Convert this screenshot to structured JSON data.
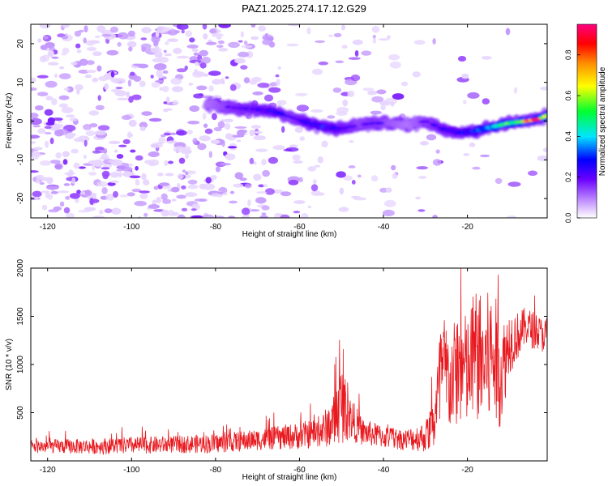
{
  "title": "PAZ1.2025.274.17.12.G29",
  "colors": {
    "spectrum_light": "#e6d4ff",
    "spectrum_mid": "#8a3cff",
    "snr_line": "#e8191f",
    "axis": "#000000"
  },
  "chart_data": [
    {
      "type": "heatmap",
      "name": "spectrogram",
      "title": "PAZ1.2025.274.17.12.G29",
      "xlabel": "Height of straight line (km)",
      "ylabel": "Frequency (Hz)",
      "xlim": [
        -124,
        -1
      ],
      "ylim": [
        -25,
        25
      ],
      "x_ticks": [
        -120,
        -100,
        -80,
        -60,
        -40,
        -20
      ],
      "x_tick_labels": [
        "-120",
        "-100",
        "-80",
        "-60",
        "-40",
        "-20"
      ],
      "y_ticks": [
        -20,
        -10,
        0,
        10,
        20
      ],
      "y_tick_labels": [
        "-20",
        "-10",
        "0",
        "10",
        "20"
      ],
      "ridge": {
        "description_points_km_hz": [
          [
            -82,
            4.5
          ],
          [
            -76,
            3.5
          ],
          [
            -70,
            3.0
          ],
          [
            -66,
            2.5
          ],
          [
            -62,
            1.0
          ],
          [
            -58,
            -0.5
          ],
          [
            -54,
            -1.5
          ],
          [
            -50,
            -2.0
          ],
          [
            -46,
            -1.0
          ],
          [
            -42,
            -0.5
          ],
          [
            -38,
            -0.5
          ],
          [
            -34,
            -1.0
          ],
          [
            -30,
            0.0
          ],
          [
            -26,
            -2.0
          ],
          [
            -22,
            -3.0
          ],
          [
            -18,
            -2.5
          ],
          [
            -14,
            -1.5
          ],
          [
            -10,
            -0.5
          ],
          [
            -6,
            0.0
          ],
          [
            -3,
            0.5
          ],
          [
            -1,
            1.5
          ]
        ],
        "amplitude": [
          0.15,
          0.22,
          0.25,
          0.28,
          0.2,
          0.28,
          0.3,
          0.26,
          0.2,
          0.22,
          0.18,
          0.15,
          0.2,
          0.25,
          0.28,
          0.32,
          0.42,
          0.55,
          0.7,
          0.92,
          0.6
        ]
      },
      "colorbar": {
        "label": "Normalized spectral amplitude",
        "range": [
          0.0,
          0.95
        ],
        "ticks": [
          0.0,
          0.2,
          0.4,
          0.6,
          0.8
        ],
        "tick_labels": [
          "0.0",
          "0.2",
          "0.4",
          "0.6",
          "0.8"
        ],
        "colormap": [
          "#ffffff",
          "#8a3cff",
          "#0000ff",
          "#00e5ff",
          "#00ff30",
          "#ffff00",
          "#ff8c00",
          "#ff0000",
          "#ff0080"
        ]
      }
    },
    {
      "type": "line",
      "name": "snr",
      "xlabel": "Height of straight line (km)",
      "ylabel": "SNR (10 * v/v)",
      "xlim": [
        -124,
        -1
      ],
      "ylim": [
        0,
        2000
      ],
      "x_ticks": [
        -120,
        -100,
        -80,
        -60,
        -40,
        -20
      ],
      "x_tick_labels": [
        "-120",
        "-100",
        "-80",
        "-60",
        "-40",
        "-20"
      ],
      "y_ticks": [
        500,
        1000,
        1500,
        2000
      ],
      "y_tick_labels": [
        "500",
        "1000",
        "1500",
        "2000"
      ],
      "series": [
        {
          "name": "SNR",
          "envelope_x": [
            -124,
            -110,
            -100,
            -90,
            -80,
            -70,
            -60,
            -55,
            -52,
            -50,
            -48,
            -45,
            -40,
            -35,
            -30,
            -28,
            -26,
            -24,
            -22,
            -20,
            -18,
            -16,
            -14,
            -12,
            -10,
            -8,
            -6,
            -4,
            -2,
            -1
          ],
          "envelope_mean": [
            150,
            150,
            160,
            170,
            180,
            220,
            260,
            300,
            400,
            600,
            450,
            300,
            250,
            220,
            250,
            400,
            900,
            800,
            1000,
            900,
            1100,
            1000,
            1100,
            900,
            1250,
            1300,
            1400,
            1350,
            1300,
            1350
          ],
          "envelope_spread": [
            70,
            80,
            90,
            90,
            100,
            110,
            140,
            160,
            260,
            420,
            240,
            140,
            120,
            110,
            160,
            300,
            700,
            500,
            650,
            600,
            700,
            700,
            750,
            550,
            350,
            250,
            200,
            200,
            180,
            150
          ]
        }
      ]
    }
  ]
}
